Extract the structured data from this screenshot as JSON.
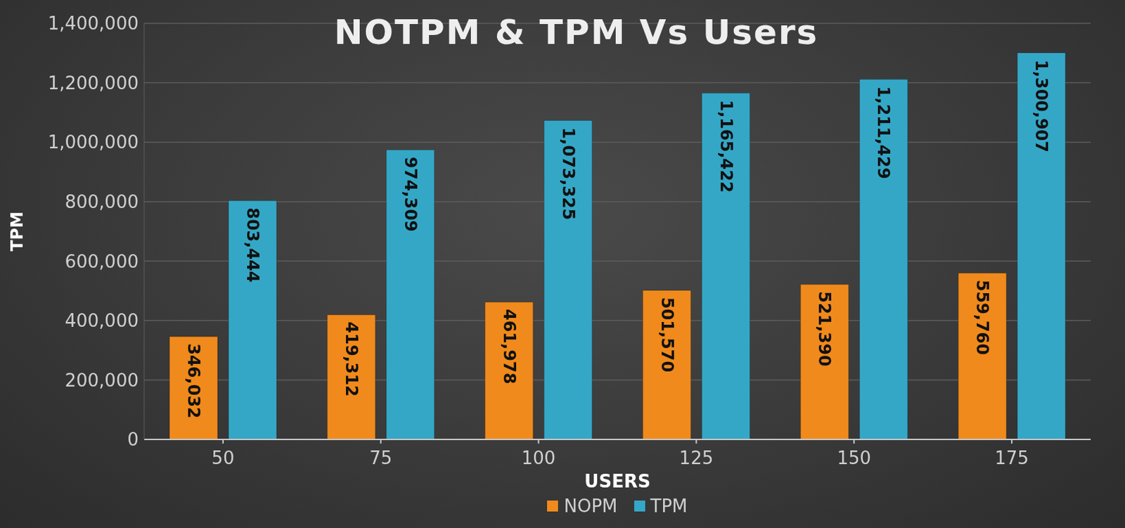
{
  "chart_data": {
    "type": "bar",
    "title": "NOTPM & TPM Vs Users",
    "x_label": "USERS",
    "y_label": "TPM",
    "categories": [
      "50",
      "75",
      "100",
      "125",
      "150",
      "175"
    ],
    "series": [
      {
        "name": "NOPM",
        "color": "#f08a1c",
        "values": [
          346032,
          419312,
          461978,
          501570,
          521390,
          559760
        ],
        "value_labels": [
          "346,032",
          "419,312",
          "461,978",
          "501,570",
          "521,390",
          "559,760"
        ]
      },
      {
        "name": "TPM",
        "color": "#35a7c6",
        "values": [
          803444,
          974309,
          1073325,
          1165422,
          1211429,
          1300907
        ],
        "value_labels": [
          "803,444",
          "974,309",
          "1,073,325",
          "1,165,422",
          "1,211,429",
          "1,300,907"
        ]
      }
    ],
    "ylim": [
      0,
      1400000
    ],
    "yticks": [
      0,
      {
        "value": 200000,
        "label": "200,000"
      },
      {
        "value": 400000,
        "label": "400,000"
      },
      {
        "value": 600000,
        "label": "600,000"
      },
      {
        "value": 800000,
        "label": "800,000"
      },
      {
        "value": 1000000,
        "label": "1,000,000"
      },
      {
        "value": 1200000,
        "label": "1,200,000"
      },
      {
        "value": 1400000,
        "label": "1,400,000"
      }
    ],
    "grid": true,
    "legend": "bottom",
    "data_labels": true
  }
}
